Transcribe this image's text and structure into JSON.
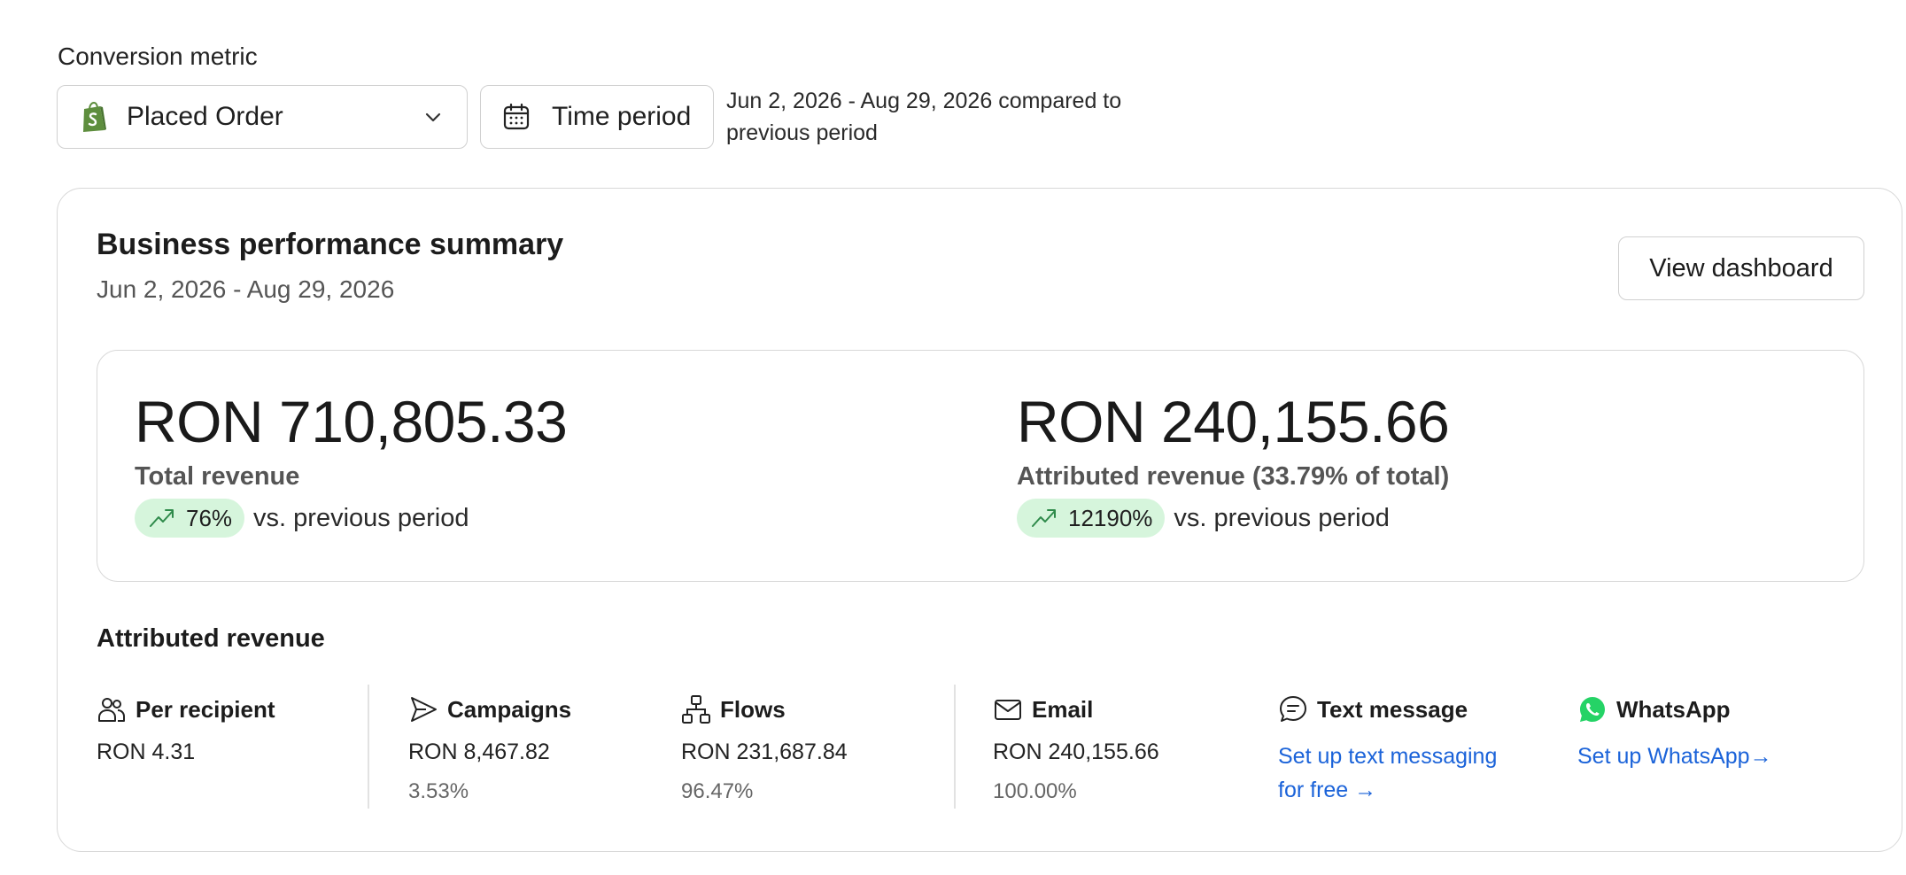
{
  "conversion_metric": {
    "label": "Conversion metric",
    "selected": "Placed Order",
    "time_period_button": "Time period",
    "period_text": "Jun 2, 2026 - Aug 29, 2026 compared to previous period"
  },
  "summary": {
    "title": "Business performance summary",
    "date_range": "Jun 2, 2026 - Aug 29, 2026",
    "view_dashboard": "View dashboard",
    "total": {
      "amount": "RON 710,805.33",
      "label": "Total revenue",
      "change": "76%",
      "vs": "vs. previous period"
    },
    "attributed": {
      "amount": "RON 240,155.66",
      "label": "Attributed revenue (33.79% of total)",
      "change": "12190%",
      "vs": "vs. previous period"
    }
  },
  "attributed_revenue": {
    "title": "Attributed revenue",
    "per_recipient": {
      "label": "Per recipient",
      "value": "RON 4.31"
    },
    "campaigns": {
      "label": "Campaigns",
      "value": "RON 8,467.82",
      "pct": "3.53%"
    },
    "flows": {
      "label": "Flows",
      "value": "RON 231,687.84",
      "pct": "96.47%"
    },
    "email": {
      "label": "Email",
      "value": "RON 240,155.66",
      "pct": "100.00%"
    },
    "text_message": {
      "label": "Text message",
      "link_line1": "Set up text messaging",
      "link_line2": "for free",
      "arrow": "→"
    },
    "whatsapp": {
      "label": "WhatsApp",
      "link": "Set up WhatsApp",
      "arrow": "→"
    }
  },
  "colors": {
    "link": "#1b63d9",
    "positive_pill": "#d6f5dc",
    "positive_icon": "#2e8a4a",
    "shopify_green": "#5e8e3e",
    "whatsapp_green": "#25d366"
  }
}
